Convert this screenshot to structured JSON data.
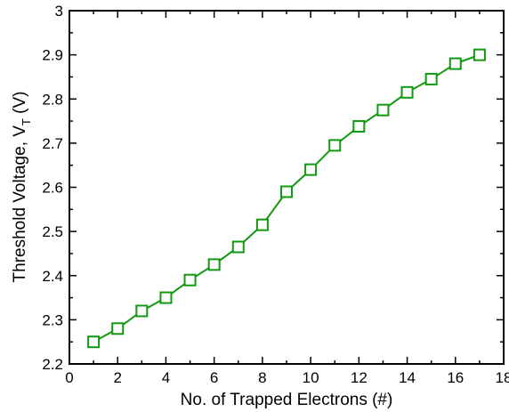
{
  "chart_data": {
    "type": "line",
    "title": "",
    "xlabel": "No. of Trapped Electrons (#)",
    "ylabel": "Threshold Voltage, V",
    "ylabel_subscript": "T",
    "ylabel_unit": " (V)",
    "xlim": [
      0,
      18
    ],
    "ylim": [
      2.2,
      3.0
    ],
    "x_ticks": [
      0,
      2,
      4,
      6,
      8,
      10,
      12,
      14,
      16,
      18
    ],
    "y_ticks": [
      2.2,
      2.3,
      2.4,
      2.5,
      2.6,
      2.7,
      2.8,
      2.9,
      3.0
    ],
    "x_tick_labels": [
      "0",
      "2",
      "4",
      "6",
      "8",
      "10",
      "12",
      "14",
      "16",
      "18"
    ],
    "y_tick_labels": [
      "2.2",
      "2.3",
      "2.4",
      "2.5",
      "2.6",
      "2.7",
      "2.8",
      "2.9",
      "3"
    ],
    "grid": false,
    "series": [
      {
        "color": "#119911",
        "marker": "open-square",
        "x": [
          1,
          2,
          3,
          4,
          5,
          6,
          7,
          8,
          9,
          10,
          11,
          12,
          13,
          14,
          15,
          16,
          17
        ],
        "y": [
          2.25,
          2.28,
          2.32,
          2.35,
          2.39,
          2.425,
          2.465,
          2.515,
          2.59,
          2.64,
          2.695,
          2.738,
          2.775,
          2.815,
          2.845,
          2.88,
          2.9
        ]
      }
    ]
  }
}
